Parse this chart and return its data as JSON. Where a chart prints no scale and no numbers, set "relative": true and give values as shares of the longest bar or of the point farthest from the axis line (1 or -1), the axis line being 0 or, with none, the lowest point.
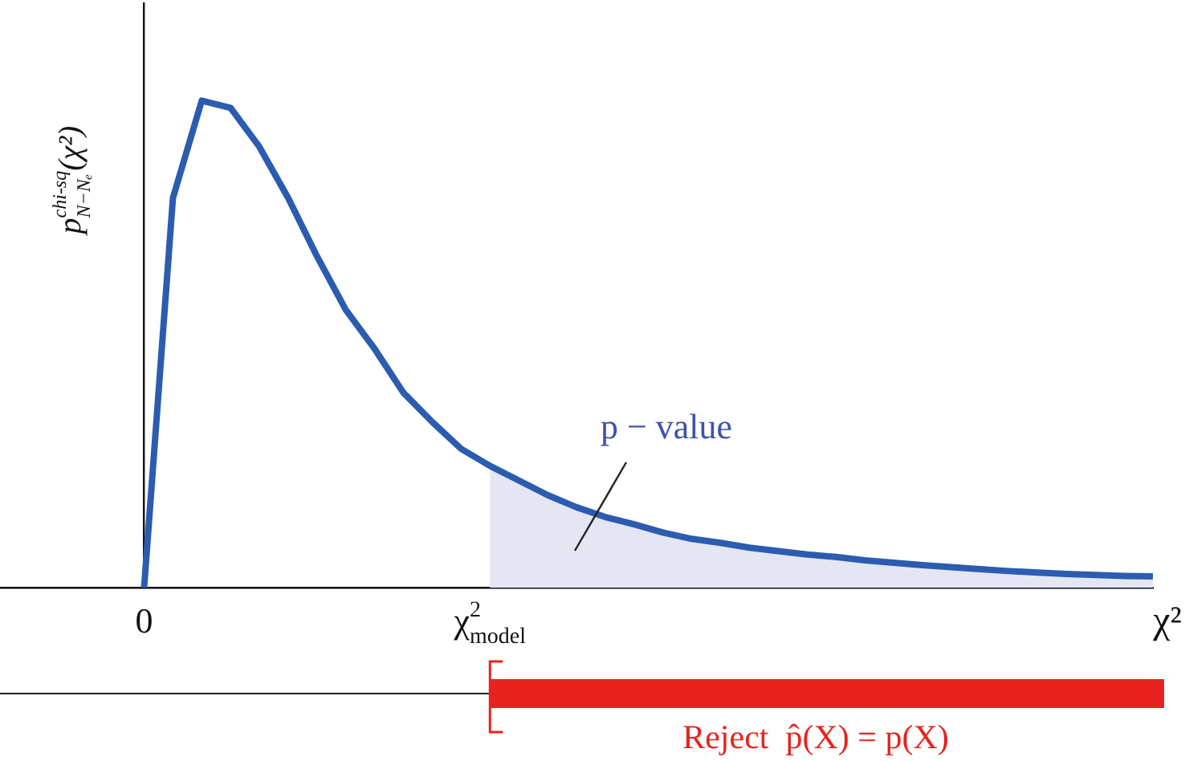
{
  "chart_data": {
    "type": "line",
    "relative": true,
    "xlabel": "χ²",
    "ylabel": "p$^{chi-sq}$$_{N−Nₑ}$(χ²)",
    "categories": [
      null,
      null,
      null,
      null,
      null,
      "0",
      null,
      null,
      null,
      null,
      null,
      null,
      null,
      null,
      null,
      null,
      null,
      "χ$^{2}$$_{model}$",
      null,
      null,
      null,
      null,
      null,
      null,
      null,
      null,
      null,
      null,
      null,
      null,
      null,
      null,
      null,
      null,
      null,
      null,
      null,
      null,
      null,
      null,
      null
    ],
    "series": [
      {
        "type": "area",
        "color": "#e4e6f4",
        "values": [
          null,
          null,
          null,
          null,
          null,
          null,
          null,
          null,
          null,
          null,
          null,
          null,
          null,
          null,
          null,
          null,
          null,
          0.25,
          0.22,
          0.19,
          0.165,
          0.145,
          0.13,
          0.113,
          0.1,
          0.092,
          0.082,
          0.075,
          0.068,
          0.063,
          0.056,
          0.051,
          0.046,
          0.042,
          0.038,
          0.034,
          0.031,
          0.028,
          0.026,
          0.024,
          0.023
        ]
      },
      {
        "color": "#2b5cb0",
        "values": [
          null,
          null,
          null,
          null,
          null,
          0,
          0.8,
          1,
          0.985,
          0.905,
          0.8,
          0.68,
          0.57,
          0.49,
          0.4,
          0.34,
          0.285,
          0.25,
          0.22,
          0.19,
          0.165,
          0.145,
          0.13,
          0.113,
          0.1,
          0.092,
          0.082,
          0.075,
          0.068,
          0.063,
          0.056,
          0.051,
          0.046,
          0.042,
          0.038,
          0.034,
          0.031,
          0.028,
          0.026,
          0.024,
          0.023
        ]
      }
    ],
    "annotations": [
      "p − value",
      "Reject  p̂(X) = p(X)"
    ]
  }
}
